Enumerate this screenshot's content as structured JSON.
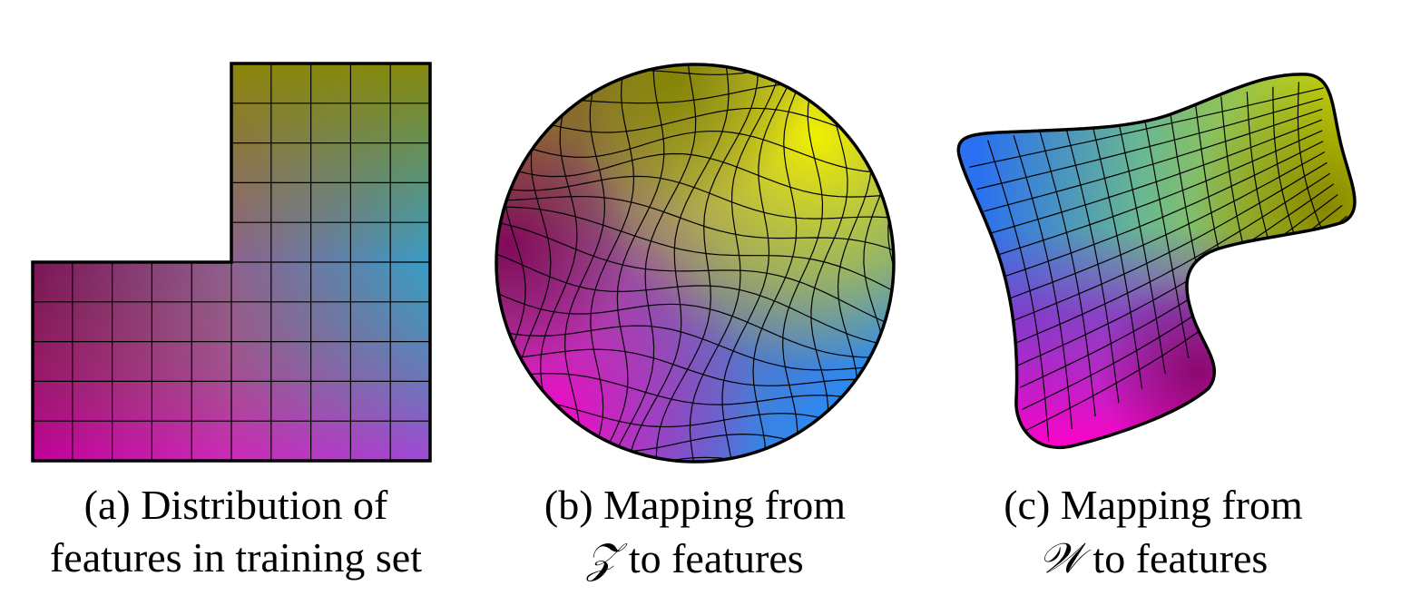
{
  "panels": [
    {
      "id": "a",
      "caption_line1": "(a) Distribution of",
      "caption_line2": "features in training set"
    },
    {
      "id": "b",
      "caption_line1": "(b) Mapping from",
      "caption_symbol": "𝒵",
      "caption_line2_rest": " to features"
    },
    {
      "id": "c",
      "caption_line1": "(c) Mapping from",
      "caption_symbol": "𝒲",
      "caption_line2_rest": " to features"
    }
  ],
  "colors": {
    "top_left": "#7f7f00",
    "top_right": "#ffff00",
    "bottom_left": "#ff00c8",
    "bottom_right": "#1a90ff",
    "mid_left": "#7a0066",
    "center": "#8a5fa0",
    "mid_right": "#3cc8b0",
    "outline": "#000000",
    "grid_line": "#000000"
  }
}
